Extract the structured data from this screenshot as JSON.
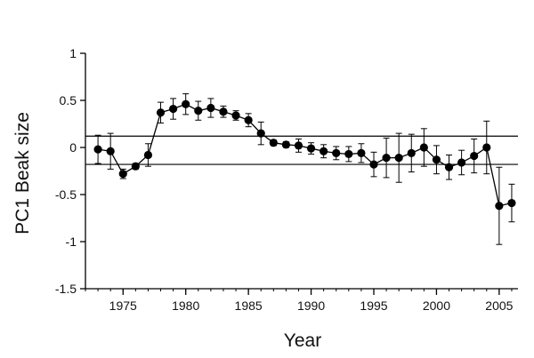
{
  "chart_data": {
    "type": "scatter",
    "title": "",
    "xlabel": "Year",
    "ylabel": "PC1 Beak size",
    "xlim": [
      1972,
      2006.5
    ],
    "ylim": [
      -1.5,
      1
    ],
    "xticks": [
      1975,
      1980,
      1985,
      1990,
      1995,
      2000,
      2005
    ],
    "yticks": [
      1,
      0.5,
      0,
      -0.5,
      -1,
      -1.5
    ],
    "xtick_labels": [
      "1975",
      "1980",
      "1985",
      "1990",
      "1995",
      "2000",
      "2005"
    ],
    "ytick_labels": [
      "1",
      "0.5",
      "0",
      "-0.5",
      "-1",
      "-1.5"
    ],
    "reference_lines_y": [
      0.12,
      -0.18
    ],
    "grid": false,
    "legend": "none",
    "marker": "filled-circle",
    "line_color": "#000000",
    "series": [
      {
        "points": [
          {
            "x": 1973,
            "y": -0.02,
            "err": 0.15
          },
          {
            "x": 1974,
            "y": -0.04,
            "err": 0.19
          },
          {
            "x": 1975,
            "y": -0.28,
            "err": 0.05
          },
          {
            "x": 1976,
            "y": -0.2,
            "err": 0.03
          },
          {
            "x": 1977,
            "y": -0.08,
            "err": 0.12
          },
          {
            "x": 1978,
            "y": 0.37,
            "err": 0.11
          },
          {
            "x": 1979,
            "y": 0.41,
            "err": 0.11
          },
          {
            "x": 1980,
            "y": 0.46,
            "err": 0.11
          },
          {
            "x": 1981,
            "y": 0.39,
            "err": 0.1
          },
          {
            "x": 1982,
            "y": 0.42,
            "err": 0.1
          },
          {
            "x": 1983,
            "y": 0.38,
            "err": 0.06
          },
          {
            "x": 1984,
            "y": 0.34,
            "err": 0.05
          },
          {
            "x": 1985,
            "y": 0.29,
            "err": 0.07
          },
          {
            "x": 1986,
            "y": 0.15,
            "err": 0.12
          },
          {
            "x": 1987,
            "y": 0.05,
            "err": 0.03
          },
          {
            "x": 1988,
            "y": 0.03,
            "err": 0.03
          },
          {
            "x": 1989,
            "y": 0.02,
            "err": 0.07
          },
          {
            "x": 1990,
            "y": -0.01,
            "err": 0.06
          },
          {
            "x": 1991,
            "y": -0.04,
            "err": 0.07
          },
          {
            "x": 1992,
            "y": -0.06,
            "err": 0.07
          },
          {
            "x": 1993,
            "y": -0.07,
            "err": 0.08
          },
          {
            "x": 1994,
            "y": -0.06,
            "err": 0.1
          },
          {
            "x": 1995,
            "y": -0.18,
            "err": 0.13
          },
          {
            "x": 1996,
            "y": -0.11,
            "err": 0.21
          },
          {
            "x": 1997,
            "y": -0.11,
            "err": 0.26
          },
          {
            "x": 1998,
            "y": -0.06,
            "err": 0.2
          },
          {
            "x": 1999,
            "y": 0.0,
            "err": 0.2
          },
          {
            "x": 2000,
            "y": -0.13,
            "err": 0.15
          },
          {
            "x": 2001,
            "y": -0.21,
            "err": 0.13
          },
          {
            "x": 2002,
            "y": -0.16,
            "err": 0.13
          },
          {
            "x": 2003,
            "y": -0.09,
            "err": 0.18
          },
          {
            "x": 2004,
            "y": 0.0,
            "err": 0.28
          },
          {
            "x": 2005,
            "y": -0.62,
            "err": 0.41
          },
          {
            "x": 2006,
            "y": -0.59,
            "err": 0.2
          }
        ]
      }
    ]
  }
}
